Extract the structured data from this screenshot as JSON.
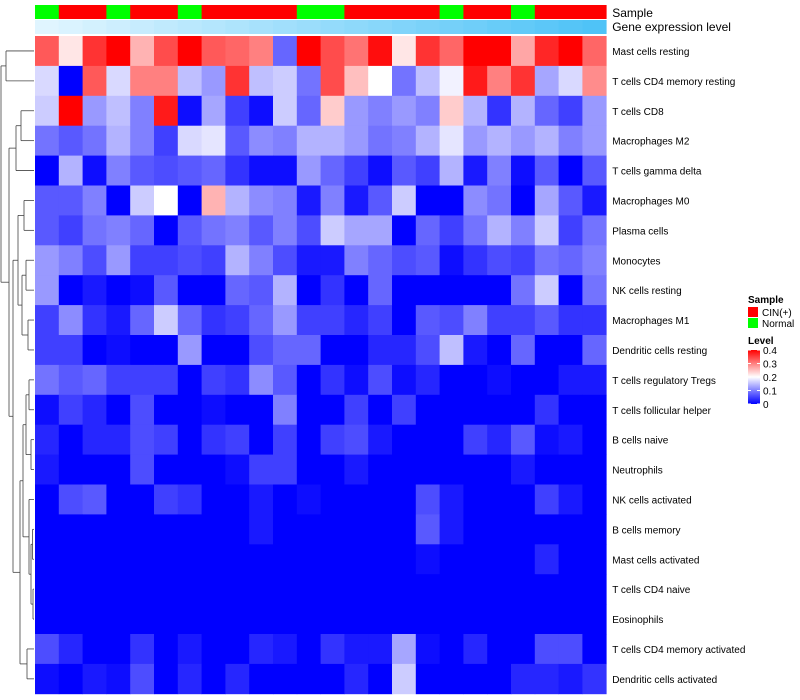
{
  "chart_data": {
    "type": "heatmap",
    "title": "",
    "annotations": [
      {
        "name": "Sample",
        "values": [
          "Normal",
          "CIN(+)",
          "CIN(+)",
          "Normal",
          "CIN(+)",
          "CIN(+)",
          "Normal",
          "CIN(+)",
          "CIN(+)",
          "CIN(+)",
          "CIN(+)",
          "Normal",
          "Normal",
          "CIN(+)",
          "CIN(+)",
          "CIN(+)",
          "CIN(+)",
          "Normal",
          "CIN(+)",
          "CIN(+)",
          "Normal",
          "CIN(+)",
          "CIN(+)",
          "CIN(+)"
        ]
      },
      {
        "name": "Gene expression level",
        "values": [
          0.02,
          0.04,
          0.06,
          0.08,
          0.1,
          0.12,
          0.14,
          0.16,
          0.18,
          0.2,
          0.22,
          0.24,
          0.26,
          0.28,
          0.3,
          0.32,
          0.34,
          0.36,
          0.38,
          0.4,
          0.42,
          0.44,
          0.46,
          0.48
        ]
      }
    ],
    "rows": [
      "Mast cells resting",
      "T cells CD4 memory resting",
      "T cells CD8",
      "Macrophages M2",
      "T cells gamma delta",
      "Macrophages M0",
      "Plasma cells",
      "Monocytes",
      "NK cells resting",
      "Macrophages M1",
      "Dendritic cells resting",
      "T cells regulatory  Tregs",
      "T cells follicular helper",
      "B cells naive",
      "Neutrophils",
      "NK cells activated",
      "B cells memory",
      "Mast cells activated",
      "T cells CD4 naive",
      "Eosinophils",
      "T cells CD4 memory activated",
      "Dendritic cells activated"
    ],
    "values": [
      [
        0.33,
        0.22,
        0.36,
        0.4,
        0.26,
        0.34,
        0.4,
        0.33,
        0.32,
        0.3,
        0.08,
        0.4,
        0.34,
        0.31,
        0.39,
        0.22,
        0.36,
        0.32,
        0.4,
        0.4,
        0.27,
        0.37,
        0.4,
        0.32
      ],
      [
        0.17,
        0.0,
        0.33,
        0.17,
        0.3,
        0.3,
        0.15,
        0.12,
        0.36,
        0.15,
        0.16,
        0.09,
        0.34,
        0.25,
        0.2,
        0.09,
        0.15,
        0.19,
        0.38,
        0.3,
        0.36,
        0.13,
        0.17,
        0.29
      ],
      [
        0.16,
        0.4,
        0.12,
        0.15,
        0.1,
        0.38,
        0.01,
        0.13,
        0.05,
        0.01,
        0.16,
        0.08,
        0.24,
        0.12,
        0.1,
        0.12,
        0.1,
        0.24,
        0.14,
        0.04,
        0.14,
        0.08,
        0.05,
        0.12
      ],
      [
        0.09,
        0.07,
        0.09,
        0.14,
        0.1,
        0.05,
        0.17,
        0.18,
        0.07,
        0.11,
        0.1,
        0.14,
        0.14,
        0.12,
        0.09,
        0.1,
        0.14,
        0.18,
        0.12,
        0.14,
        0.12,
        0.14,
        0.1,
        0.12
      ],
      [
        0.0,
        0.14,
        0.01,
        0.1,
        0.07,
        0.06,
        0.07,
        0.08,
        0.04,
        0.01,
        0.01,
        0.12,
        0.08,
        0.05,
        0.01,
        0.07,
        0.05,
        0.14,
        0.02,
        0.1,
        0.01,
        0.07,
        0.0,
        0.07
      ],
      [
        0.07,
        0.07,
        0.1,
        0.0,
        0.16,
        0.2,
        0.0,
        0.26,
        0.14,
        0.11,
        0.1,
        0.02,
        0.1,
        0.02,
        0.07,
        0.16,
        0.0,
        0.0,
        0.11,
        0.09,
        0.0,
        0.13,
        0.07,
        0.02
      ],
      [
        0.07,
        0.05,
        0.09,
        0.1,
        0.08,
        0.0,
        0.07,
        0.09,
        0.1,
        0.07,
        0.1,
        0.06,
        0.16,
        0.13,
        0.13,
        0.0,
        0.08,
        0.05,
        0.09,
        0.14,
        0.1,
        0.16,
        0.05,
        0.09
      ],
      [
        0.12,
        0.1,
        0.06,
        0.12,
        0.05,
        0.05,
        0.06,
        0.05,
        0.14,
        0.1,
        0.06,
        0.02,
        0.02,
        0.1,
        0.08,
        0.06,
        0.07,
        0.01,
        0.04,
        0.06,
        0.05,
        0.09,
        0.08,
        0.1
      ],
      [
        0.12,
        0.0,
        0.02,
        0.0,
        0.01,
        0.07,
        0.0,
        0.0,
        0.08,
        0.07,
        0.14,
        0.0,
        0.04,
        0.0,
        0.08,
        0.0,
        0.0,
        0.0,
        0.0,
        0.0,
        0.09,
        0.16,
        0.0,
        0.09
      ],
      [
        0.05,
        0.11,
        0.04,
        0.02,
        0.08,
        0.16,
        0.08,
        0.04,
        0.05,
        0.08,
        0.12,
        0.05,
        0.05,
        0.03,
        0.05,
        0.0,
        0.07,
        0.06,
        0.1,
        0.05,
        0.05,
        0.07,
        0.04,
        0.04
      ],
      [
        0.05,
        0.05,
        0.0,
        0.01,
        0.0,
        0.0,
        0.12,
        0.0,
        0.0,
        0.06,
        0.08,
        0.08,
        0.0,
        0.0,
        0.03,
        0.03,
        0.06,
        0.15,
        0.02,
        0.0,
        0.08,
        0.0,
        0.0,
        0.08
      ],
      [
        0.09,
        0.07,
        0.08,
        0.05,
        0.05,
        0.05,
        0.0,
        0.05,
        0.04,
        0.11,
        0.07,
        0.0,
        0.04,
        0.01,
        0.06,
        0.01,
        0.03,
        0.0,
        0.0,
        0.01,
        0.0,
        0.0,
        0.02,
        0.02
      ],
      [
        0.01,
        0.05,
        0.03,
        0.0,
        0.06,
        0.0,
        0.0,
        0.01,
        0.0,
        0.0,
        0.1,
        0.0,
        0.0,
        0.05,
        0.0,
        0.05,
        0.0,
        0.0,
        0.0,
        0.0,
        0.0,
        0.04,
        0.0,
        0.0
      ],
      [
        0.03,
        0.0,
        0.03,
        0.03,
        0.06,
        0.05,
        0.0,
        0.04,
        0.05,
        0.0,
        0.05,
        0.0,
        0.05,
        0.06,
        0.02,
        0.0,
        0.0,
        0.0,
        0.05,
        0.03,
        0.07,
        0.01,
        0.02,
        0.0
      ],
      [
        0.02,
        0.0,
        0.0,
        0.0,
        0.06,
        0.0,
        0.0,
        0.0,
        0.01,
        0.05,
        0.05,
        0.0,
        0.0,
        0.02,
        0.0,
        0.0,
        0.0,
        0.0,
        0.0,
        0.0,
        0.02,
        0.0,
        0.0,
        0.0
      ],
      [
        0.0,
        0.06,
        0.07,
        0.0,
        0.0,
        0.05,
        0.04,
        0.0,
        0.0,
        0.02,
        0.0,
        0.01,
        0.0,
        0.0,
        0.0,
        0.0,
        0.06,
        0.02,
        0.0,
        0.0,
        0.0,
        0.05,
        0.02,
        0.0
      ],
      [
        0.0,
        0.0,
        0.0,
        0.0,
        0.0,
        0.0,
        0.0,
        0.0,
        0.0,
        0.02,
        0.0,
        0.0,
        0.0,
        0.0,
        0.0,
        0.0,
        0.07,
        0.02,
        0.0,
        0.0,
        0.0,
        0.0,
        0.0,
        0.0
      ],
      [
        0.0,
        0.0,
        0.0,
        0.0,
        0.0,
        0.0,
        0.0,
        0.0,
        0.0,
        0.0,
        0.0,
        0.0,
        0.0,
        0.0,
        0.0,
        0.0,
        0.01,
        0.0,
        0.0,
        0.0,
        0.0,
        0.03,
        0.0,
        0.0
      ],
      [
        0.0,
        0.0,
        0.0,
        0.0,
        0.0,
        0.0,
        0.0,
        0.0,
        0.0,
        0.0,
        0.0,
        0.0,
        0.0,
        0.0,
        0.0,
        0.0,
        0.0,
        0.0,
        0.0,
        0.0,
        0.0,
        0.0,
        0.0,
        0.0
      ],
      [
        0.0,
        0.0,
        0.0,
        0.0,
        0.0,
        0.0,
        0.0,
        0.0,
        0.0,
        0.0,
        0.0,
        0.0,
        0.0,
        0.0,
        0.0,
        0.0,
        0.0,
        0.0,
        0.0,
        0.0,
        0.0,
        0.0,
        0.0,
        0.0
      ],
      [
        0.06,
        0.03,
        0.0,
        0.0,
        0.04,
        0.0,
        0.02,
        0.0,
        0.0,
        0.03,
        0.02,
        0.0,
        0.04,
        0.02,
        0.02,
        0.13,
        0.01,
        0.0,
        0.03,
        0.0,
        0.0,
        0.06,
        0.06,
        0.0
      ],
      [
        0.01,
        0.0,
        0.02,
        0.01,
        0.06,
        0.0,
        0.03,
        0.0,
        0.03,
        0.0,
        0.0,
        0.0,
        0.0,
        0.03,
        0.0,
        0.16,
        0.0,
        0.0,
        0.0,
        0.0,
        0.03,
        0.03,
        0.02,
        0.04
      ]
    ],
    "color_scale": {
      "low": "#0000ff",
      "mid": "#ffffff",
      "high": "#ff0000",
      "min": 0,
      "mid_value": 0.2,
      "max": 0.4
    },
    "legend": {
      "sample_title": "Sample",
      "sample_items": [
        {
          "label": "CIN(+)",
          "color": "#ff0000"
        },
        {
          "label": "Normal",
          "color": "#00ff00"
        }
      ],
      "level_title": "Level",
      "level_ticks": [
        "0.4",
        "0.3",
        "0.2",
        "0.1",
        "0"
      ],
      "level_tick_values": [
        0.4,
        0.3,
        0.2,
        0.1,
        0
      ]
    },
    "gene_level_colors": {
      "low": "#e0f5ff",
      "high": "#4fc3f7"
    },
    "row_dendrogram": true,
    "column_dendrogram": false
  }
}
